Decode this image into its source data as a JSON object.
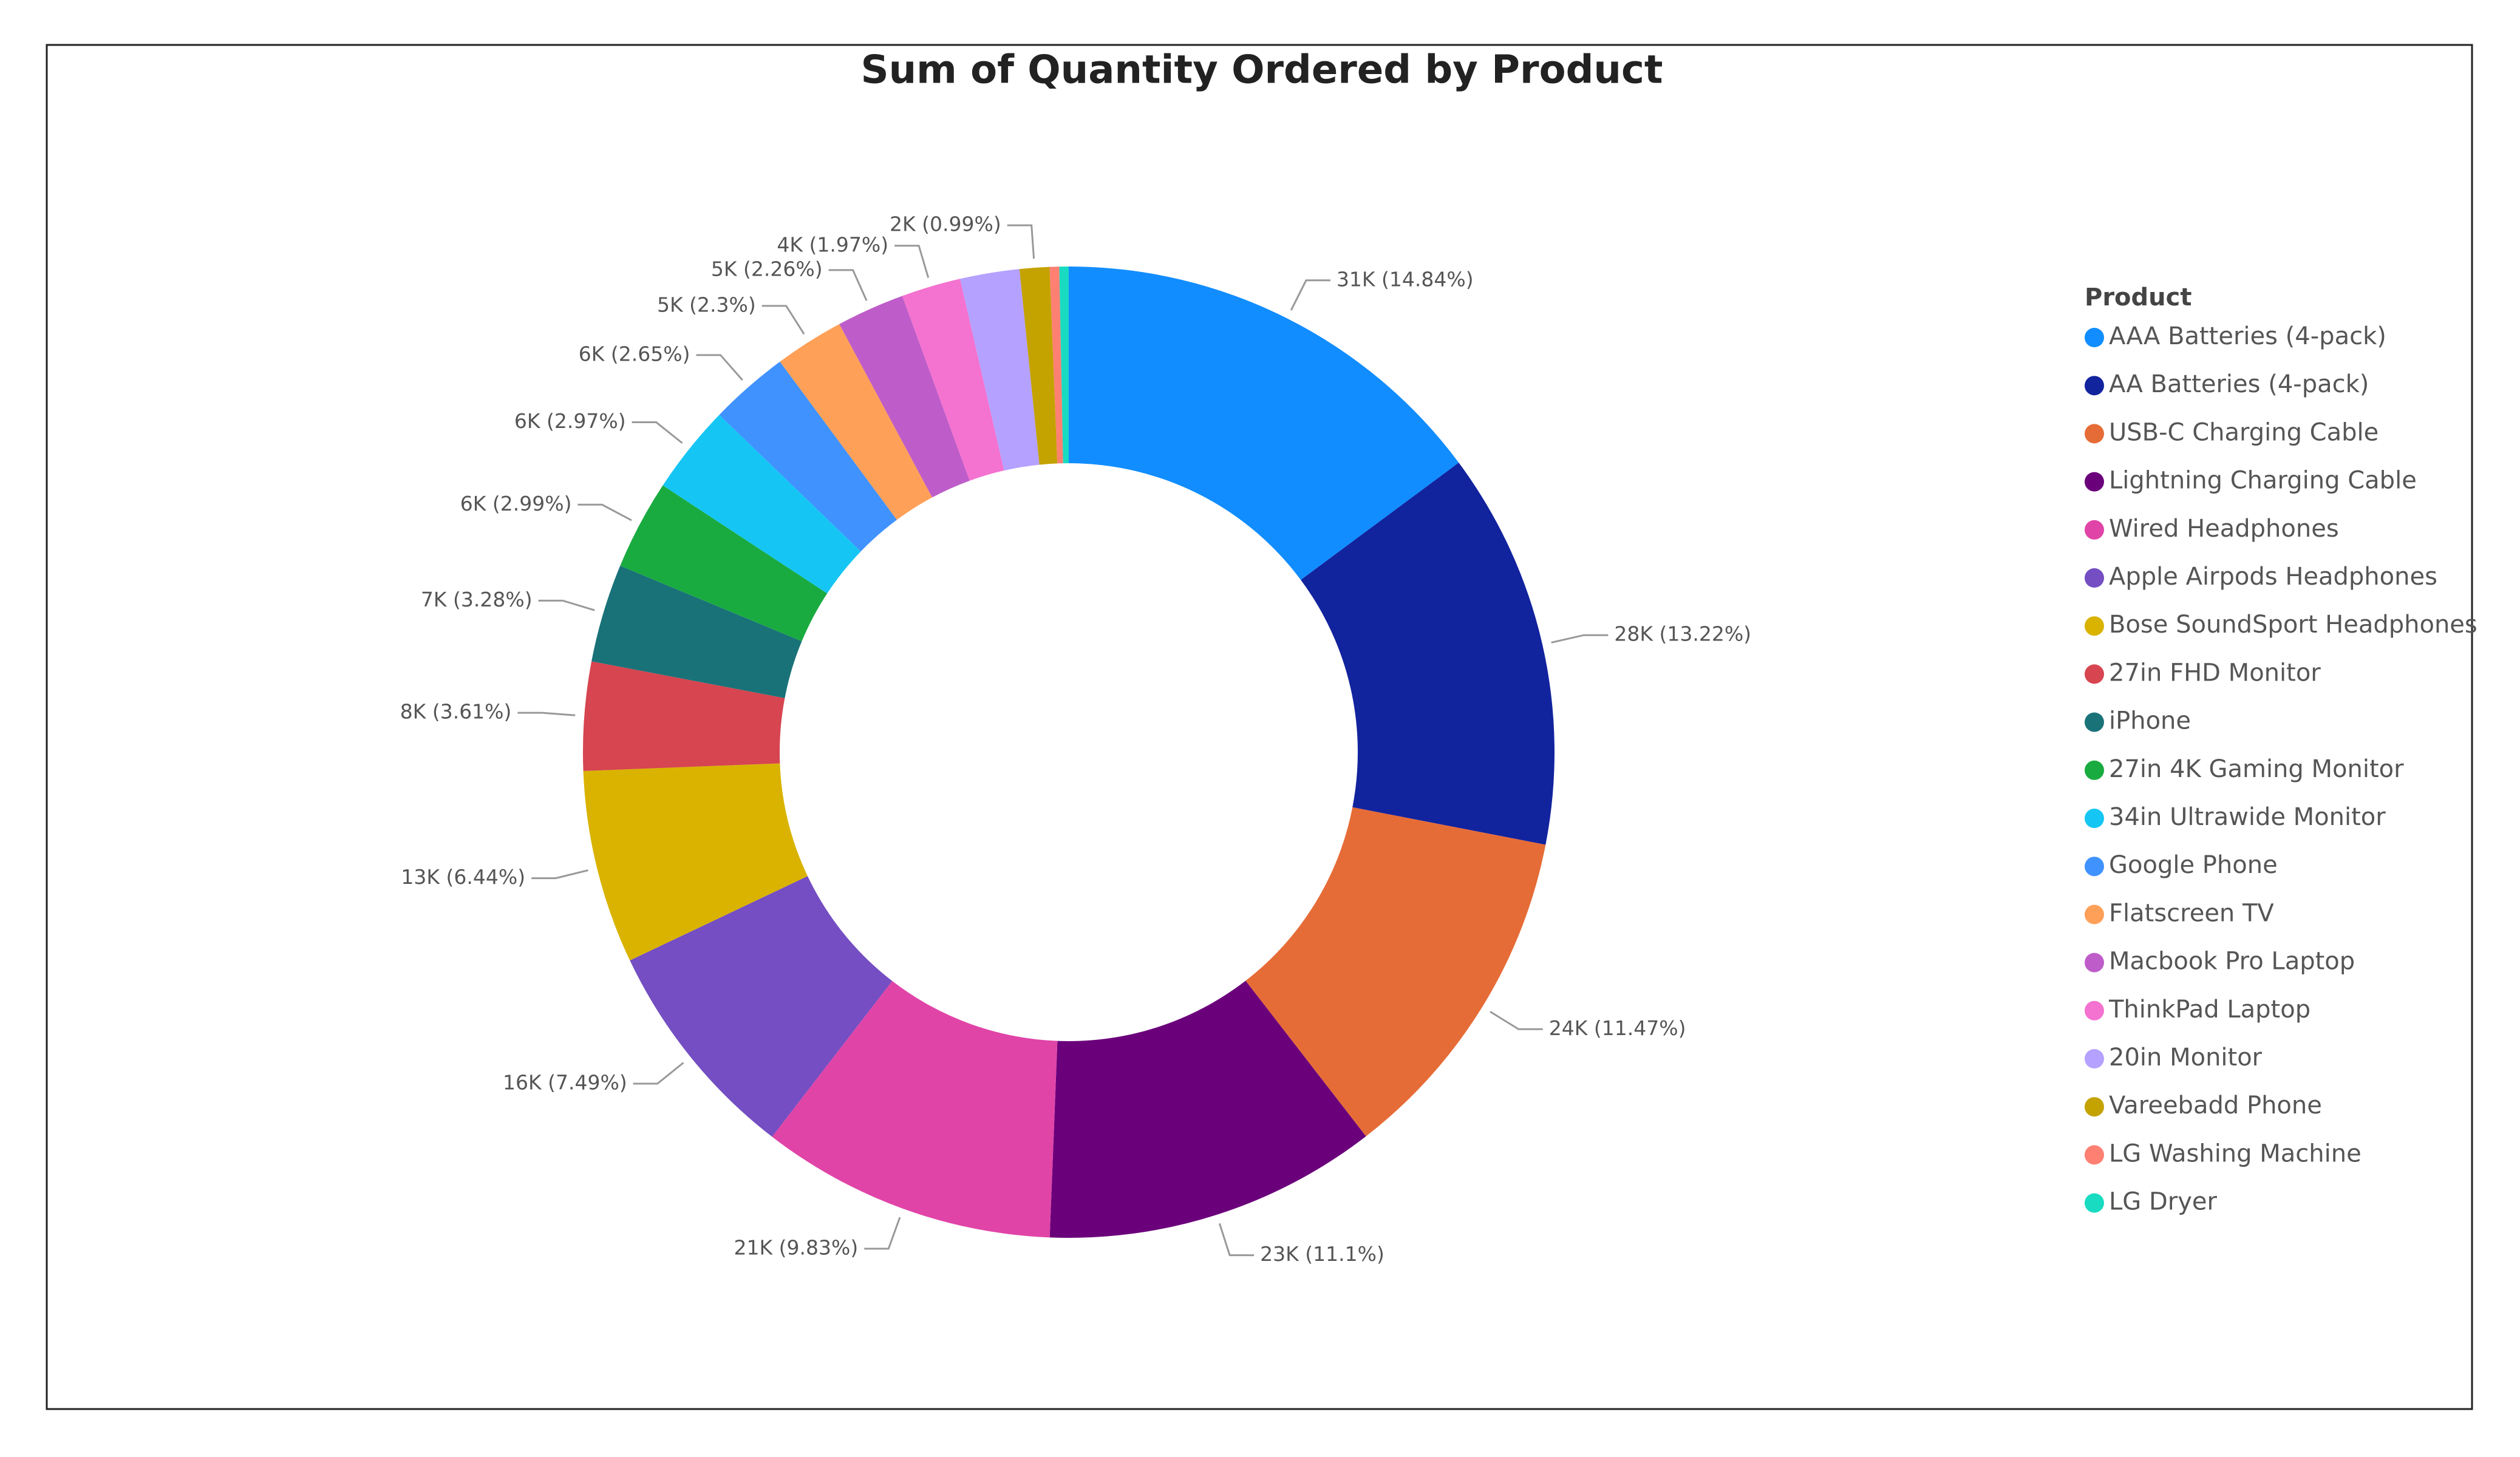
{
  "chart_data": {
    "type": "pie",
    "title": "Sum of Quantity Ordered by Product",
    "legend_title": "Product",
    "categories": [
      "AAA Batteries (4-pack)",
      "AA Batteries (4-pack)",
      "USB-C Charging Cable",
      "Lightning Charging Cable",
      "Wired Headphones",
      "Apple Airpods Headphones",
      "Bose SoundSport Headphones",
      "27in FHD Monitor",
      "iPhone",
      "27in 4K Gaming Monitor",
      "34in Ultrawide Monitor",
      "Google Phone",
      "Flatscreen TV",
      "Macbook Pro Laptop",
      "ThinkPad Laptop",
      "20in Monitor",
      "Vareebadd Phone",
      "LG Washing Machine",
      "LG Dryer"
    ],
    "values": [
      31017,
      27635,
      23975,
      23217,
      20557,
      15661,
      13457,
      7550,
      6849,
      6244,
      6199,
      5532,
      4819,
      4728,
      4130,
      4129,
      2068,
      666,
      646
    ],
    "value_labels": [
      "31K (14.84%)",
      "28K (13.22%)",
      "24K (11.47%)",
      "23K (11.1%)",
      "21K (9.83%)",
      "16K (7.49%)",
      "13K (6.44%)",
      "8K (3.61%)",
      "7K (3.28%)",
      "6K (2.99%)",
      "6K (2.97%)",
      "6K (2.65%)",
      "5K (2.3%)",
      "5K (2.26%)",
      "4K (1.97%)",
      null,
      "2K (0.99%)",
      null,
      null
    ],
    "colors": [
      "#118dff",
      "#12239e",
      "#e66c37",
      "#6b007b",
      "#e044a7",
      "#744ec2",
      "#d9b300",
      "#d64550",
      "#197278",
      "#1aab40",
      "#15c6f4",
      "#4092ff",
      "#ffa058",
      "#be5dc9",
      "#f472d0",
      "#b5a1ff",
      "#c4a200",
      "#fd8073",
      "#18dbc1"
    ],
    "legend_position": "right"
  }
}
